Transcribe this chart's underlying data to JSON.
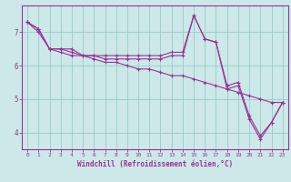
{
  "xlabel": "Windchill (Refroidissement éolien,°C)",
  "bg_color": "#cce8e8",
  "line_color": "#993399",
  "grid_color": "#99cccc",
  "series": [
    [
      7.3,
      7.1,
      6.5,
      6.5,
      6.4,
      6.3,
      6.3,
      6.2,
      6.2,
      6.2,
      6.2,
      6.2,
      6.2,
      6.3,
      6.3,
      7.5,
      6.8,
      6.7,
      5.3,
      5.4,
      4.4,
      3.8,
      4.3,
      4.9
    ],
    [
      7.3,
      7.1,
      6.5,
      6.4,
      6.3,
      6.3,
      6.2,
      6.1,
      6.1,
      6.0,
      5.9,
      5.9,
      5.8,
      5.7,
      5.7,
      5.6,
      5.5,
      5.4,
      5.3,
      5.2,
      5.1,
      5.0,
      4.9,
      4.9
    ],
    [
      7.3,
      7.0,
      6.5,
      6.5,
      6.5,
      6.3,
      6.3,
      6.3,
      6.3,
      6.3,
      6.3,
      6.3,
      6.3,
      6.4,
      6.4,
      7.5,
      6.8,
      6.7,
      5.4,
      5.5,
      4.5,
      3.9,
      4.3,
      4.9
    ]
  ],
  "xlim": [
    -0.5,
    23.5
  ],
  "ylim": [
    3.5,
    7.8
  ],
  "yticks": [
    4,
    5,
    6,
    7
  ],
  "xticks": [
    0,
    1,
    2,
    3,
    4,
    5,
    6,
    7,
    8,
    9,
    10,
    11,
    12,
    13,
    14,
    15,
    16,
    17,
    18,
    19,
    20,
    21,
    22,
    23
  ],
  "figsize": [
    3.2,
    2.0
  ],
  "dpi": 100
}
